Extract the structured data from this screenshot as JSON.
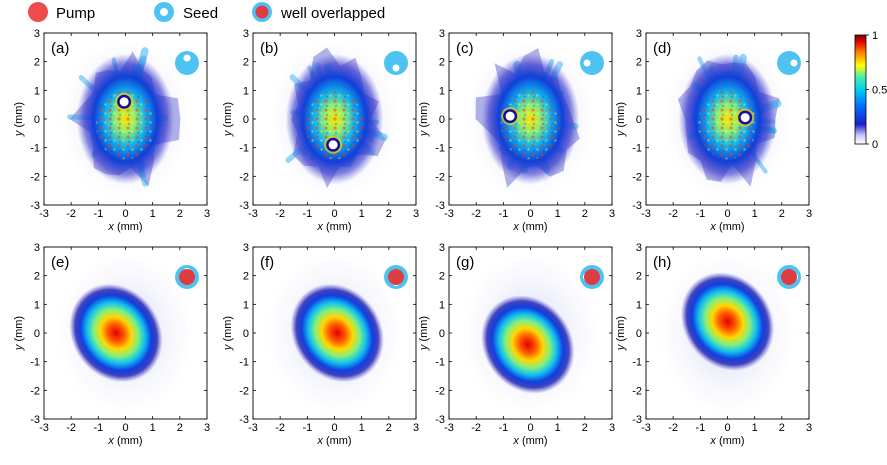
{
  "legend": [
    {
      "label": "Pump",
      "color": "#ee4b4b",
      "icon": "pump-dot-icon"
    },
    {
      "label": "Seed",
      "color": "#4ec3f2",
      "icon": "seed-ring-icon"
    },
    {
      "label": "well overlapped",
      "color": "#4ec3f2",
      "inner_color": "#dd3d40",
      "icon": "overlap-icon"
    }
  ],
  "colorbar": {
    "ticks": [
      {
        "value": 1,
        "label": "1"
      },
      {
        "value": 0.5,
        "label": "0.5"
      },
      {
        "value": 0,
        "label": "0"
      }
    ],
    "stops": [
      "#ffffff",
      "#1f1fc0",
      "#00b0ff",
      "#30e0c0",
      "#ffff00",
      "#ff8000",
      "#d00000",
      "#7f0000"
    ]
  },
  "axes": {
    "xlabel_var": "x",
    "xlabel_unit": " (mm)",
    "ylabel_var": "y",
    "ylabel_unit": " (mm)",
    "xlim": [
      -3,
      3
    ],
    "ylim": [
      -3,
      3
    ],
    "ticks": [
      -3,
      -2,
      -1,
      0,
      1,
      2,
      3
    ],
    "tick_labels": [
      "-3",
      "-2",
      "-1",
      "0",
      "1",
      "2",
      "3"
    ]
  },
  "chart_data": [
    {
      "type": "heatmap",
      "label": "(a)",
      "kind": "seed",
      "hole": [
        -0.05,
        0.6
      ],
      "inset": "seed-hole-top"
    },
    {
      "type": "heatmap",
      "label": "(b)",
      "kind": "seed",
      "hole": [
        -0.05,
        -0.9
      ],
      "inset": "seed-hole-bottom"
    },
    {
      "type": "heatmap",
      "label": "(c)",
      "kind": "seed",
      "hole": [
        -0.75,
        0.1
      ],
      "inset": "seed-hole-left"
    },
    {
      "type": "heatmap",
      "label": "(d)",
      "kind": "seed",
      "hole": [
        0.65,
        0.05
      ],
      "inset": "seed-hole-right"
    },
    {
      "type": "heatmap",
      "label": "(e)",
      "kind": "pump",
      "center": [
        -0.35,
        0.0
      ],
      "inset": "pump-offset-top"
    },
    {
      "type": "heatmap",
      "label": "(f)",
      "kind": "pump",
      "center": [
        0.1,
        0.0
      ],
      "inset": "pump-offset-bottom"
    },
    {
      "type": "heatmap",
      "label": "(g)",
      "kind": "pump",
      "center": [
        -0.1,
        -0.4
      ],
      "inset": "pump-offset-left"
    },
    {
      "type": "heatmap",
      "label": "(h)",
      "kind": "pump",
      "center": [
        0.0,
        0.4
      ],
      "inset": "pump-offset-right"
    }
  ]
}
